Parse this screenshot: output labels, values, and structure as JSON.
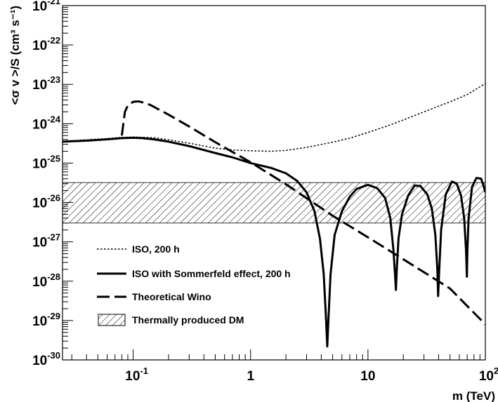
{
  "chart_data": {
    "type": "line",
    "title": "",
    "xlabel": "m (TeV)",
    "ylabel": "<σ v >/S (cm³ s⁻¹)",
    "xscale": "log",
    "yscale": "log",
    "xlim": [
      0.025,
      100
    ],
    "ylim": [
      1e-30,
      1e-21
    ],
    "grid": false,
    "legend_position": "bottom-left",
    "x_ticks": [
      {
        "value": 0.1,
        "base": "10",
        "exp": "-1"
      },
      {
        "value": 1,
        "base": "1",
        "exp": ""
      },
      {
        "value": 10,
        "base": "10",
        "exp": ""
      },
      {
        "value": 100,
        "base": "10",
        "exp": "2"
      }
    ],
    "y_ticks": [
      {
        "value": 1e-30,
        "base": "10",
        "exp": "-30"
      },
      {
        "value": 1e-29,
        "base": "10",
        "exp": "-29"
      },
      {
        "value": 1e-28,
        "base": "10",
        "exp": "-28"
      },
      {
        "value": 1e-27,
        "base": "10",
        "exp": "-27"
      },
      {
        "value": 1e-26,
        "base": "10",
        "exp": "-26"
      },
      {
        "value": 1e-25,
        "base": "10",
        "exp": "-25"
      },
      {
        "value": 1e-24,
        "base": "10",
        "exp": "-24"
      },
      {
        "value": 1e-23,
        "base": "10",
        "exp": "-23"
      },
      {
        "value": 1e-22,
        "base": "10",
        "exp": "-22"
      },
      {
        "value": 1e-21,
        "base": "10",
        "exp": "-21"
      }
    ],
    "band": {
      "name": "Thermally produced DM",
      "y_range": [
        3e-27,
        3.2e-26
      ],
      "x_range": [
        0.025,
        100
      ]
    },
    "series": [
      {
        "name": "ISO, 200 h",
        "style": "dotted",
        "x": [
          0.025,
          0.04,
          0.06,
          0.08,
          0.1,
          0.15,
          0.2,
          0.3,
          0.5,
          0.7,
          1,
          1.5,
          2,
          3,
          5,
          7,
          10,
          15,
          20,
          30,
          50,
          70,
          100
        ],
        "y": [
          3.6e-25,
          3.9e-25,
          4.2e-25,
          4.5e-25,
          4.6e-25,
          4.4e-25,
          3.9e-25,
          3.2e-25,
          2.4e-25,
          2.15e-25,
          2.05e-25,
          2e-25,
          2.1e-25,
          2.5e-25,
          3.4e-25,
          4.3e-25,
          6e-25,
          9e-25,
          1.25e-24,
          2e-24,
          3.6e-24,
          5.5e-24,
          1.05e-23
        ]
      },
      {
        "name": "ISO with Sommerfeld effect, 200 h",
        "style": "solid",
        "x": [
          0.025,
          0.04,
          0.06,
          0.08,
          0.1,
          0.12,
          0.15,
          0.2,
          0.3,
          0.5,
          0.7,
          1,
          1.5,
          2,
          2.5,
          3,
          3.5,
          3.9,
          4.2,
          4.4,
          4.5,
          4.6,
          4.8,
          5.2,
          6,
          7,
          8,
          10,
          12,
          14,
          15.5,
          16.5,
          17,
          17.3,
          17.6,
          18.2,
          19.5,
          22,
          25,
          28,
          32,
          35,
          37.5,
          39,
          39.6,
          40.3,
          42,
          46,
          52,
          57,
          62,
          66,
          68.5,
          69.6,
          70.3,
          72,
          77,
          84,
          92,
          96,
          100
        ],
        "y": [
          3.5e-25,
          3.7e-25,
          4e-25,
          4.3e-25,
          4.4e-25,
          4.3e-25,
          4e-25,
          3.5e-25,
          2.7e-25,
          1.8e-25,
          1.4e-25,
          1e-25,
          7.5e-26,
          5.5e-26,
          3.5e-26,
          1.8e-26,
          6e-27,
          1.2e-27,
          1.5e-28,
          1e-29,
          2.2e-30,
          1e-29,
          1.5e-28,
          1.5e-27,
          6e-27,
          1.4e-26,
          2.2e-26,
          2.8e-26,
          2.3e-26,
          1.3e-26,
          4e-27,
          6e-28,
          1.5e-28,
          6e-29,
          2e-28,
          1.2e-27,
          5e-27,
          1.5e-26,
          2.7e-26,
          2.6e-26,
          1.6e-26,
          7e-27,
          1.5e-27,
          2e-28,
          4.2e-29,
          1.5e-28,
          2e-27,
          1.6e-26,
          3.4e-26,
          3e-26,
          1.5e-26,
          4e-27,
          6e-28,
          1.3e-28,
          6e-28,
          4e-27,
          2.5e-26,
          4.2e-26,
          4e-26,
          2.8e-26,
          1.8e-26
        ]
      },
      {
        "name": "Theoretical Wino",
        "style": "dashed",
        "x": [
          0.08,
          0.085,
          0.09,
          0.1,
          0.11,
          0.12,
          0.14,
          0.17,
          0.2,
          0.3,
          0.5,
          1,
          2,
          5,
          10,
          20,
          50,
          100
        ],
        "y": [
          5e-25,
          2e-24,
          2.9e-24,
          3.6e-24,
          3.7e-24,
          3.5e-24,
          3e-24,
          2.2e-24,
          1.7e-24,
          8.5e-25,
          3.4e-25,
          1.05e-25,
          2.9e-26,
          4.6e-27,
          1.3e-27,
          3.6e-28,
          6.5e-29,
          8e-30
        ]
      }
    ]
  }
}
